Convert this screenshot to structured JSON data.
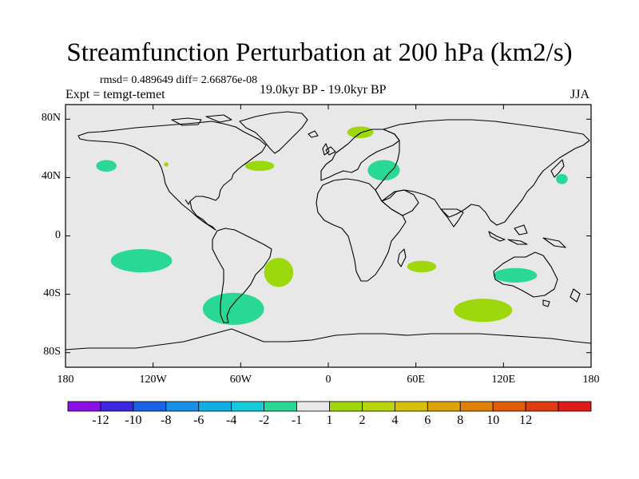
{
  "title": "Streamfunction Perturbation at 200 hPa (km2/s)",
  "stats": "rmsd= 0.489649 diff= 2.66876e-08",
  "experiment": "Expt = temgt-temet",
  "period": "19.0kyr BP - 19.0kyr BP",
  "season": "JJA",
  "map": {
    "background_color": "#e8e8e8",
    "lon_range": [
      -180,
      180
    ],
    "lat_range": [
      -90,
      90
    ],
    "x_ticks": [
      {
        "value": -180,
        "label": "180"
      },
      {
        "value": -120,
        "label": "120W"
      },
      {
        "value": -60,
        "label": "60W"
      },
      {
        "value": 0,
        "label": "0"
      },
      {
        "value": 60,
        "label": "60E"
      },
      {
        "value": 120,
        "label": "120E"
      },
      {
        "value": 180,
        "label": "180"
      }
    ],
    "y_ticks": [
      {
        "value": 80,
        "label": "80N"
      },
      {
        "value": 40,
        "label": "40N"
      },
      {
        "value": 0,
        "label": "0"
      },
      {
        "value": -40,
        "label": "40S"
      },
      {
        "value": -80,
        "label": "80S"
      }
    ]
  },
  "chart_data": {
    "type": "heatmap",
    "field": "200 hPa streamfunction perturbation",
    "units": "km2/s",
    "background_bin": "-1 to 1 (neutral)",
    "anomalies": [
      {
        "region": "North Pacific",
        "lon": -152,
        "lat": 48,
        "dlon": 7,
        "dlat": 4,
        "bin": "-2 to -1",
        "color": "#2ad896"
      },
      {
        "region": "Central North Pacific",
        "lon": -111,
        "lat": 49,
        "dlon": 1.5,
        "dlat": 1.5,
        "bin": "1 to 2",
        "color": "#9cd80c"
      },
      {
        "region": "Northwest Atlantic",
        "lon": -47,
        "lat": 48,
        "dlon": 10,
        "dlat": 3.5,
        "bin": "1 to 2",
        "color": "#9cd80c"
      },
      {
        "region": "Scandinavia",
        "lon": 22,
        "lat": 71,
        "dlon": 9,
        "dlat": 4,
        "bin": "1 to 2",
        "color": "#9cd80c"
      },
      {
        "region": "Black Sea",
        "lon": 38,
        "lat": 45,
        "dlon": 11,
        "dlat": 7,
        "bin": "-2 to -1",
        "color": "#2ad896"
      },
      {
        "region": "Northwest Pacific",
        "lon": 160,
        "lat": 39,
        "dlon": 4,
        "dlat": 3.5,
        "bin": "-2 to -1",
        "color": "#2ad896"
      },
      {
        "region": "South Pacific",
        "lon": -128,
        "lat": -17,
        "dlon": 21,
        "dlat": 8,
        "bin": "-2 to -1",
        "color": "#2ad896"
      },
      {
        "region": "South Atlantic (Brazil)",
        "lon": -34,
        "lat": -25,
        "dlon": 10,
        "dlat": 10,
        "bin": "1 to 2",
        "color": "#9cd80c"
      },
      {
        "region": "Indian Ocean",
        "lon": 64,
        "lat": -21,
        "dlon": 10,
        "dlat": 4,
        "bin": "1 to 2",
        "color": "#9cd80c"
      },
      {
        "region": "Australia",
        "lon": 128,
        "lat": -27,
        "dlon": 15,
        "dlat": 5,
        "bin": "-2 to -1",
        "color": "#2ad896"
      },
      {
        "region": "Southern Ocean (Argentina)",
        "lon": -65,
        "lat": -50,
        "dlon": 21,
        "dlat": 11,
        "bin": "-2 to -1",
        "color": "#2ad896"
      },
      {
        "region": "Southern Indian Ocean",
        "lon": 106,
        "lat": -51,
        "dlon": 20,
        "dlat": 8,
        "bin": "1 to 2",
        "color": "#9cd80c"
      }
    ]
  },
  "colorbar": {
    "bins": [
      {
        "color": "#8b10e8"
      },
      {
        "color": "#3c28e0"
      },
      {
        "color": "#1a62e6"
      },
      {
        "color": "#1690e8"
      },
      {
        "color": "#10b0e4"
      },
      {
        "color": "#12ccdc"
      },
      {
        "color": "#2ad896"
      },
      {
        "color": "#e8e8e8"
      },
      {
        "color": "#9cd80c"
      },
      {
        "color": "#b8d40a"
      },
      {
        "color": "#d4c008"
      },
      {
        "color": "#dca408"
      },
      {
        "color": "#e08006"
      },
      {
        "color": "#e05c06"
      },
      {
        "color": "#e03a10"
      },
      {
        "color": "#e01a1a"
      }
    ],
    "labels": [
      "-12",
      "-10",
      "-8",
      "-6",
      "-4",
      "-2",
      "-1",
      "1",
      "2",
      "4",
      "6",
      "8",
      "10",
      "12"
    ]
  }
}
